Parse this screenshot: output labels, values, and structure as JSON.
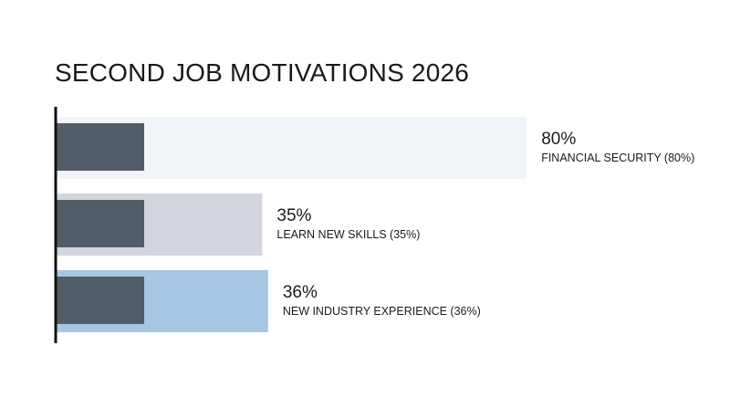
{
  "chart_data": {
    "type": "bar",
    "orientation": "horizontal",
    "title": "SECOND JOB MOTIVATIONS 2026",
    "xlabel": "",
    "ylabel": "",
    "xlim": [
      0,
      100
    ],
    "grid": false,
    "legend": "none",
    "series": [
      {
        "values": [
          80,
          35,
          36
        ],
        "value_labels": [
          "80%",
          "35%",
          "36%"
        ],
        "category_labels": [
          "FINANCIAL SECURITY (80%)",
          "LEARN NEW SKILLS (35%)",
          "NEW INDUSTRY EXPERIENCE (36%)"
        ],
        "colors": [
          "#f1f5f9",
          "#d2d6dc",
          "#a5c7e4"
        ]
      }
    ],
    "marker_color": "#525d69",
    "axis_color": "#111111"
  }
}
